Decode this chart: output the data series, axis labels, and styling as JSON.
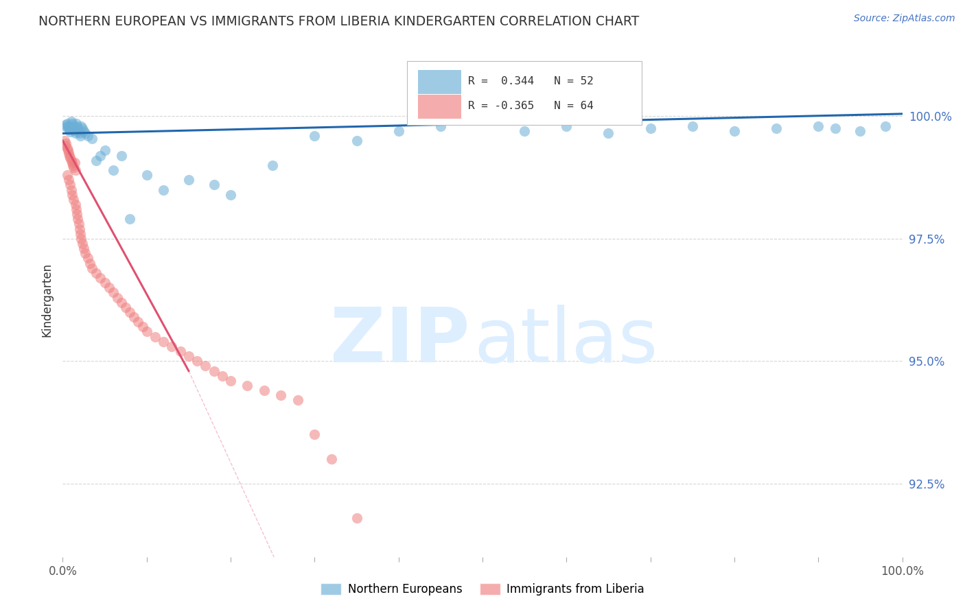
{
  "title": "NORTHERN EUROPEAN VS IMMIGRANTS FROM LIBERIA KINDERGARTEN CORRELATION CHART",
  "source": "Source: ZipAtlas.com",
  "ylabel": "Kindergarten",
  "right_yticks": [
    92.5,
    95.0,
    97.5,
    100.0
  ],
  "right_ytick_labels": [
    "92.5%",
    "95.0%",
    "97.5%",
    "100.0%"
  ],
  "legend_label_blue": "Northern Europeans",
  "legend_label_pink": "Immigrants from Liberia",
  "annotation_blue": "R =  0.344   N = 52",
  "annotation_pink": "R = -0.365   N = 64",
  "blue_color": "#6baed6",
  "pink_color": "#f08080",
  "trendline_blue": "#2166ac",
  "trendline_pink": "#e05070",
  "watermark_zip_color": "#ddeeff",
  "watermark_atlas_color": "#ddeeff",
  "title_color": "#333333",
  "source_color": "#4472c4",
  "right_axis_color": "#4472c4",
  "grid_color": "#cccccc",
  "background": "#ffffff",
  "ylim_min": 91.0,
  "ylim_max": 101.5,
  "xlim_min": 0.0,
  "xlim_max": 100.0
}
